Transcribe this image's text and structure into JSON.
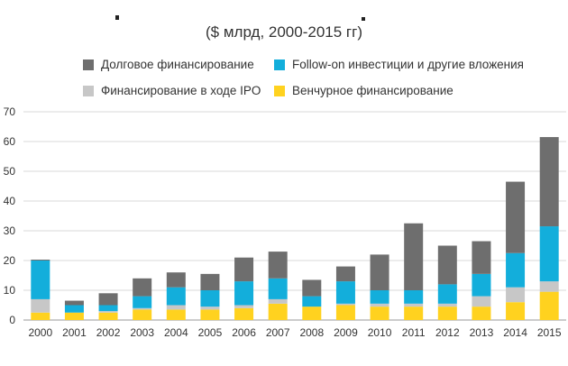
{
  "chart_data": {
    "type": "bar",
    "stacked": true,
    "subtitle": "($ млрд, 2000-2015 гг)",
    "categories": [
      "2000",
      "2001",
      "2002",
      "2003",
      "2004",
      "2005",
      "2006",
      "2007",
      "2008",
      "2009",
      "2010",
      "2011",
      "2012",
      "2013",
      "2014",
      "2015"
    ],
    "ylim": [
      0,
      70
    ],
    "yticks": [
      0,
      10,
      20,
      30,
      40,
      50,
      60,
      70
    ],
    "grid": true,
    "legend_position": "top",
    "series": [
      {
        "name": "Венчурное финансирование",
        "color": "#FFD21F",
        "values": [
          2.5,
          2.5,
          2.5,
          3.5,
          3.5,
          3.5,
          4.0,
          5.5,
          4.5,
          5.0,
          4.5,
          4.5,
          4.5,
          4.5,
          6.0,
          9.5
        ]
      },
      {
        "name": "Финансирование в ходе IPO",
        "color": "#C7C7C7",
        "values": [
          4.5,
          0.0,
          0.5,
          0.5,
          1.5,
          1.0,
          1.0,
          1.5,
          0.0,
          0.5,
          1.0,
          1.0,
          1.0,
          3.5,
          5.0,
          3.5
        ]
      },
      {
        "name": "Follow-on инвестиции и другие вложения",
        "color": "#13AEDB",
        "values": [
          13.0,
          2.5,
          2.0,
          4.0,
          6.0,
          5.5,
          8.0,
          7.0,
          3.5,
          7.5,
          4.5,
          4.5,
          6.5,
          7.5,
          11.5,
          18.5
        ]
      },
      {
        "name": "Долговое финансирование",
        "color": "#6E6E6E",
        "values": [
          0.3,
          1.5,
          4.0,
          6.0,
          5.0,
          5.5,
          8.0,
          9.0,
          5.5,
          5.0,
          12.0,
          22.5,
          13.0,
          11.0,
          24.0,
          30.0
        ]
      }
    ]
  }
}
